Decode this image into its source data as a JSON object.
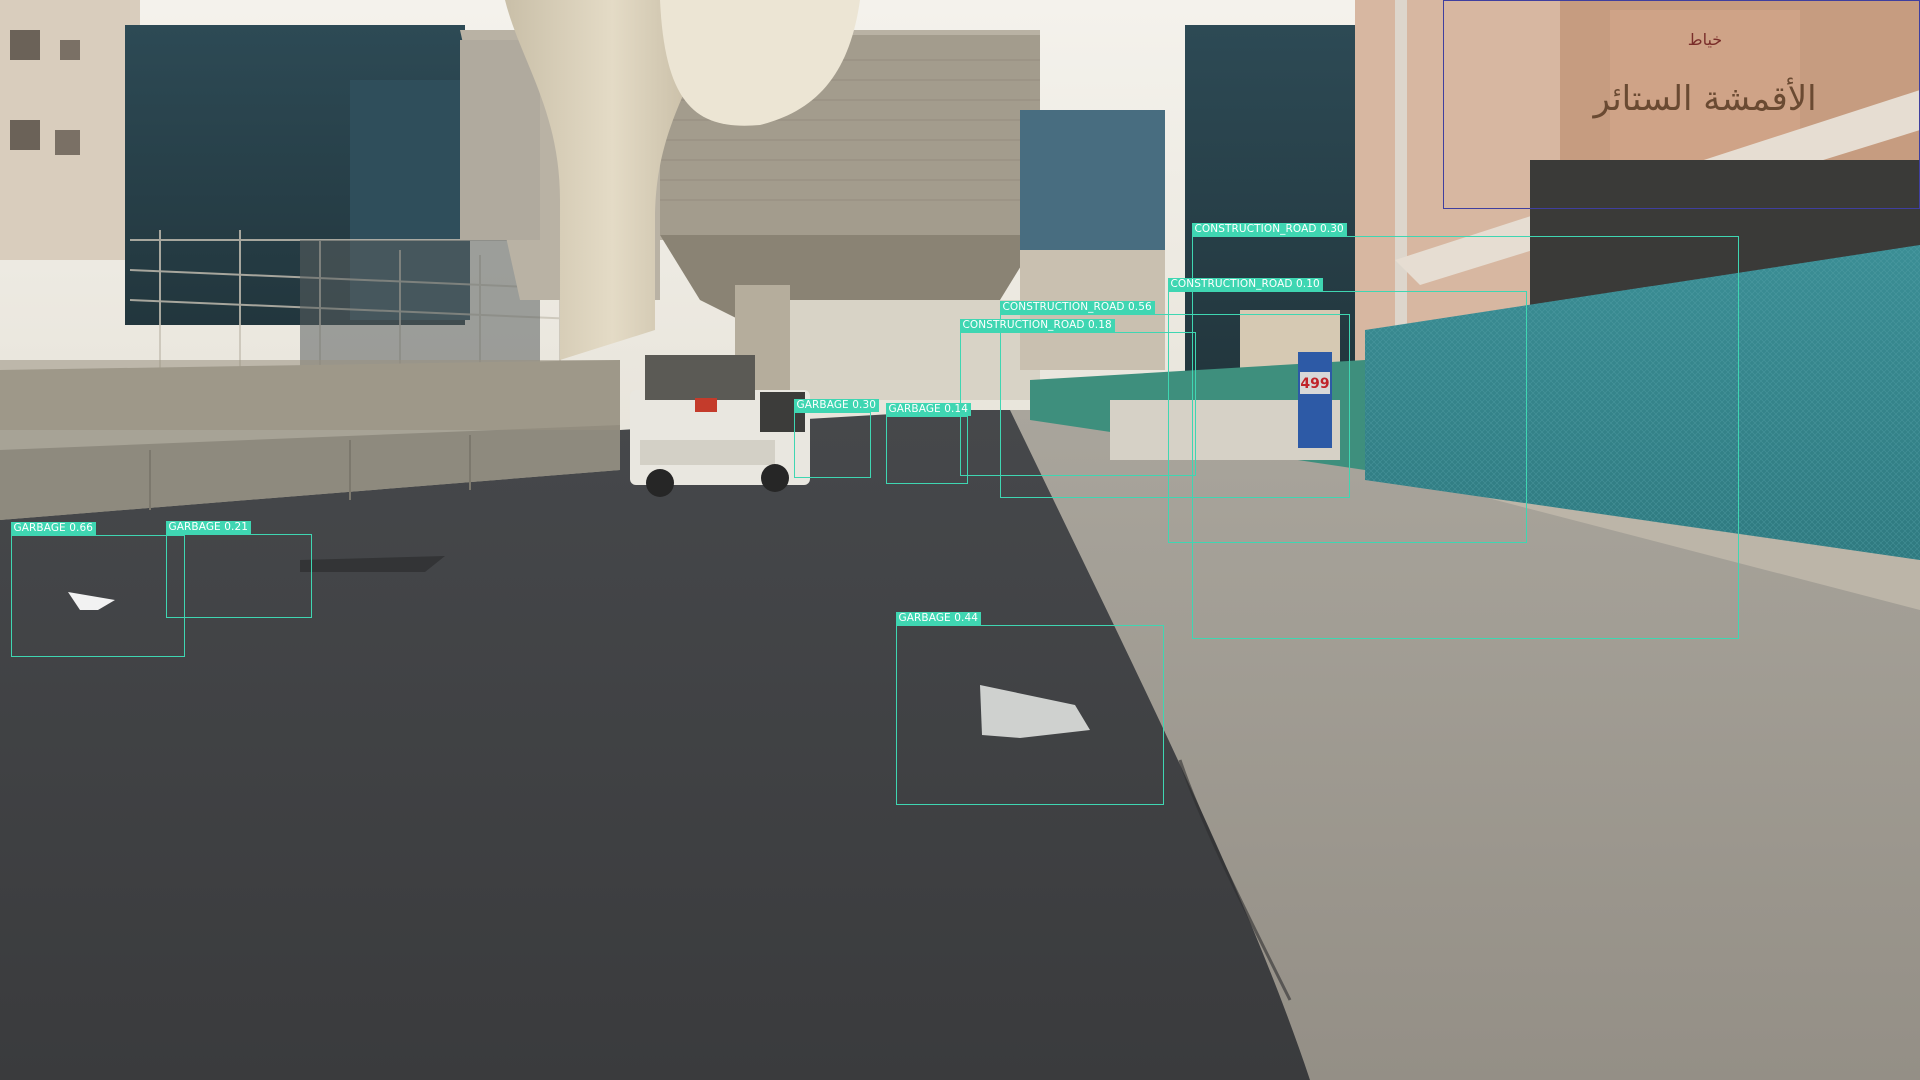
{
  "scene": {
    "store_sign": "الأقمشة الستائر",
    "store_sign_top": "خياط",
    "price_sign": "499"
  },
  "detections": [
    {
      "class": "GARBAGE",
      "score": "0.66"
    },
    {
      "class": "GARBAGE",
      "score": "0.21"
    },
    {
      "class": "GARBAGE",
      "score": "0.44"
    },
    {
      "class": "GARBAGE",
      "score": "0.30"
    },
    {
      "class": "GARBAGE",
      "score": "0.14"
    },
    {
      "class": "CONSTRUCTION_ROAD",
      "score": "0.56"
    },
    {
      "class": "CONSTRUCTION_ROAD",
      "score": "0.18"
    },
    {
      "class": "CONSTRUCTION_ROAD",
      "score": "0.30"
    },
    {
      "class": "CONSTRUCTION_ROAD",
      "score": "0.10"
    }
  ],
  "colors": {
    "detection_box": "#3fd6b2",
    "detection_label_text": "#ffffff",
    "secondary_box": "#3f3f9f"
  }
}
